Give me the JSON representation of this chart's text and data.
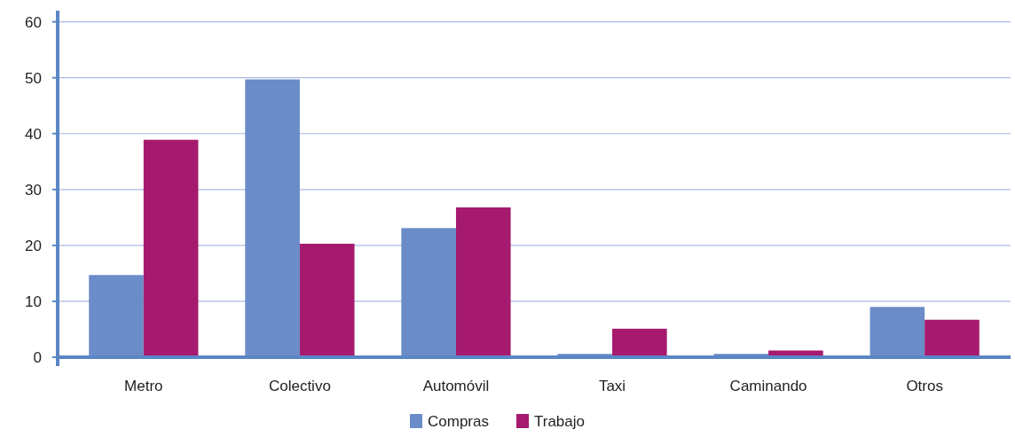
{
  "chart_data": {
    "type": "bar",
    "categories": [
      "Metro",
      "Colectivo",
      "Automóvil",
      "Taxi",
      "Caminando",
      "Otros"
    ],
    "series": [
      {
        "name": "Compras",
        "color": "#6a8cc8",
        "values": [
          14.7,
          49.7,
          23.1,
          0.6,
          0.6,
          9.0
        ]
      },
      {
        "name": "Trabajo",
        "color": "#a51a6f",
        "values": [
          38.9,
          20.3,
          26.8,
          5.1,
          1.2,
          6.7
        ]
      }
    ],
    "ylim": [
      0,
      62
    ],
    "yticks": [
      0,
      10,
      20,
      30,
      40,
      50,
      60
    ],
    "grid": "y",
    "legend": "bottom"
  }
}
